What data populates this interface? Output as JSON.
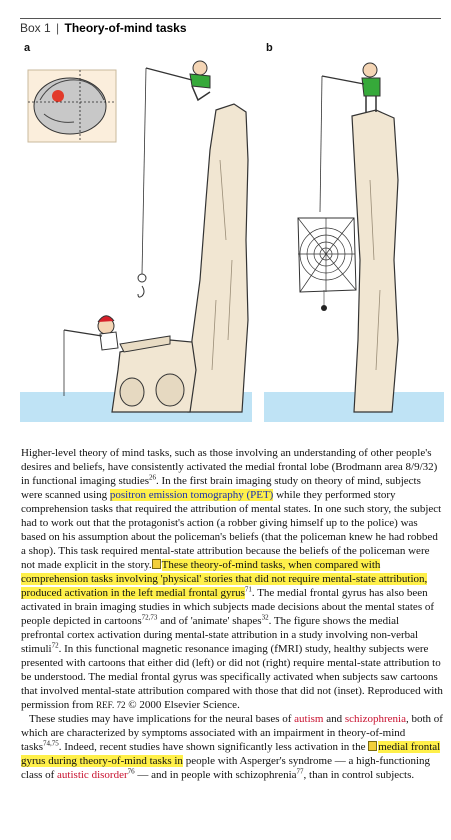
{
  "box": {
    "number": "Box 1",
    "separator": "|",
    "title": "Theory-of-mind tasks"
  },
  "panels": {
    "a": "a",
    "b": "b"
  },
  "colors": {
    "highlight": "#fff04a",
    "link_blue": "#1a2fae",
    "link_red": "#c8102e",
    "water": "#bfe3f5",
    "rock": "#f1e6d2"
  },
  "paragraph1": {
    "t1": "Higher-level theory of mind tasks, such as those involving an understanding of other people's desires and beliefs, have consistently activated the medial frontal lobe (Brodmann area 8/9/32) in functional imaging studies",
    "s1": "26",
    "t2": ". In the first brain imaging study on theory of mind, subjects were scanned using ",
    "pet": "positron emission tomography (PET)",
    "t3": " while they performed story comprehension tasks that required the attribution of mental states. In one such story, the subject had to work out that the protagonist's action (a robber giving himself up to the police) was based on his assumption about the policeman's beliefs (that the policeman knew he had robbed a shop). This task required mental-state attribution because the beliefs of the policeman were not made explicit in the story.",
    "hl": "These theory-of-mind tasks, when compared with comprehension tasks involving 'physical' stories that did not require mental-state attribution, produced activation in the left medial frontal gyrus",
    "s2": "71",
    "t4": ". The medial frontal gyrus has also been activated in brain imaging studies in which subjects made decisions about the mental states of people depicted in cartoons",
    "s3": "72,73",
    "t5": " and of 'animate' shapes",
    "s4": "32",
    "t6": ". The figure shows the medial prefrontal cortex activation during mental-state attribution in a study involving non-verbal stimuli",
    "s5": "72",
    "t7": ". In this functional magnetic resonance imaging (fMRI) study, healthy subjects were presented with cartoons that either did (left) or did not (right) require mental-state attribution to be understood. The medial frontal gyrus was specifically activated when subjects saw cartoons that involved mental-state attribution compared with those that did not (inset). Reproduced with permission from ",
    "ref": "REF. 72",
    "t8": " © 2000 Elsevier Science."
  },
  "paragraph2": {
    "t1": "These studies may have implications for the neural bases of ",
    "autism": "autism",
    "and": " and ",
    "schizo": "schizophrenia",
    "t2": ", both of which are characterized by symptoms associated with an impairment in theory-of-mind tasks",
    "s1": "74,75",
    "t3": ". Indeed, recent studies have shown significantly less activation in the ",
    "hl": "medial frontal gyrus during theory-of-mind tasks in",
    "t4": " people with Asperger's syndrome — a high-functioning class of ",
    "autistic": "autistic disorder",
    "s2": "76",
    "t5": " — and in people with schizophrenia",
    "s3": "77",
    "t6": ", than in control subjects."
  }
}
